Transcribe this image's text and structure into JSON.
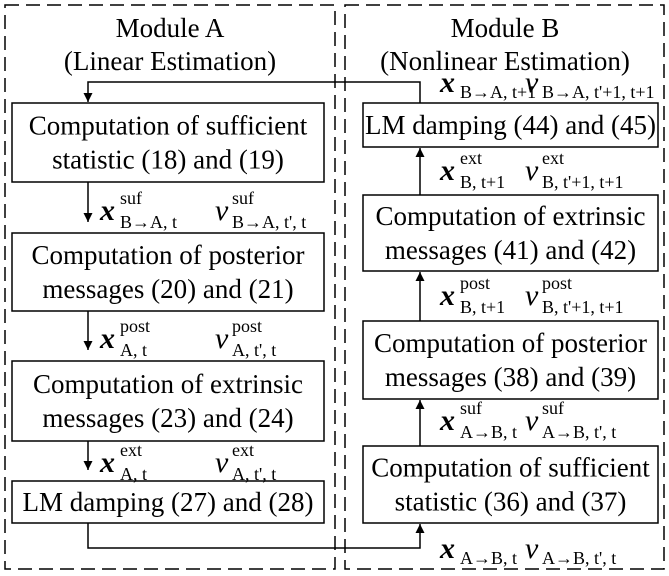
{
  "moduleA": {
    "title": "Module A",
    "subtitle": "(Linear Estimation)",
    "blocks": [
      {
        "lines": [
          "Computation of sufficient",
          "statistic (18) and (19)"
        ]
      },
      {
        "lines": [
          "Computation of posterior",
          "messages (20) and (21)"
        ]
      },
      {
        "lines": [
          "Computation of extrinsic",
          "messages (23) and (24)"
        ]
      },
      {
        "lines": [
          "LM damping (27) and (28)"
        ]
      }
    ],
    "messages": [
      {
        "x": {
          "base": "x",
          "sup": "suf",
          "sub": "B→A, t"
        },
        "v": {
          "base": "v",
          "sup": "suf",
          "sub": "B→A, t', t"
        }
      },
      {
        "x": {
          "base": "x",
          "sup": "post",
          "sub": "A, t"
        },
        "v": {
          "base": "v",
          "sup": "post",
          "sub": "A, t', t"
        }
      },
      {
        "x": {
          "base": "x",
          "sup": "ext",
          "sub": "A, t"
        },
        "v": {
          "base": "v",
          "sup": "ext",
          "sub": "A, t', t"
        }
      }
    ]
  },
  "moduleB": {
    "title": "Module B",
    "subtitle": "(Nonlinear Estimation)",
    "blocks": [
      {
        "lines": [
          "LM damping (44) and (45)"
        ]
      },
      {
        "lines": [
          "Computation of extrinsic",
          "messages (41) and (42)"
        ]
      },
      {
        "lines": [
          "Computation of posterior",
          "messages (38) and (39)"
        ]
      },
      {
        "lines": [
          "Computation of sufficient",
          "statistic (36) and (37)"
        ]
      }
    ],
    "messages": [
      {
        "x": {
          "base": "x",
          "sub": "B→A, t+1"
        },
        "v": {
          "base": "v",
          "sub": "B→A, t'+1, t+1"
        }
      },
      {
        "x": {
          "base": "x",
          "sup": "ext",
          "sub": "B, t+1"
        },
        "v": {
          "base": "v",
          "sup": "ext",
          "sub": "B, t'+1, t+1"
        }
      },
      {
        "x": {
          "base": "x",
          "sup": "post",
          "sub": "B, t+1"
        },
        "v": {
          "base": "v",
          "sup": "post",
          "sub": "B, t'+1, t+1"
        }
      },
      {
        "x": {
          "base": "x",
          "sup": "suf",
          "sub": "A→B, t"
        },
        "v": {
          "base": "v",
          "sup": "suf",
          "sub": "A→B, t', t"
        }
      },
      {
        "x": {
          "base": "x",
          "sub": "A→B, t"
        },
        "v": {
          "base": "v",
          "sub": "A→B, t', t"
        }
      }
    ]
  }
}
